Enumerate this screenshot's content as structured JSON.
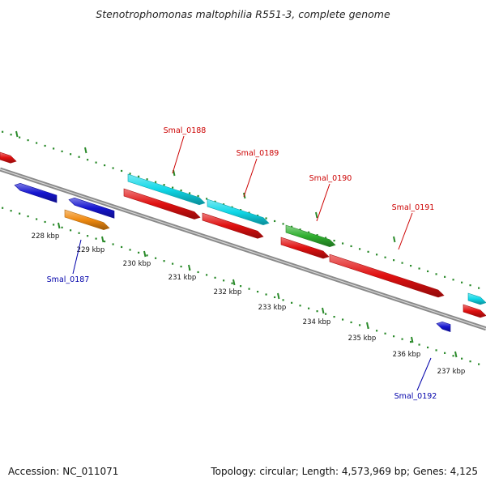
{
  "title": "Stenotrophomonas maltophilia R551-3, complete genome",
  "footer": {
    "accession": "Accession: NC_011071",
    "summary": "Topology: circular; Length: 4,573,969 bp; Genes: 4,125"
  },
  "colors": {
    "red": "#e01010",
    "blue": "#1515d0",
    "cyan": "#10d8e8",
    "green": "#30b030",
    "orange": "#f08a10",
    "backbone": "#8a8a8a",
    "tick": "#2a8a2a",
    "label_red": "#cc0000",
    "label_blue": "#0000aa"
  },
  "ticks": [
    {
      "label": "228 kbp"
    },
    {
      "label": "229 kbp"
    },
    {
      "label": "230 kbp"
    },
    {
      "label": "231 kbp"
    },
    {
      "label": "232 kbp"
    },
    {
      "label": "233 kbp"
    },
    {
      "label": "234 kbp"
    },
    {
      "label": "235 kbp"
    },
    {
      "label": "236 kbp"
    },
    {
      "label": "237 kbp"
    }
  ],
  "gene_labels": [
    {
      "text": "Smal_0187",
      "color": "blue"
    },
    {
      "text": "Smal_0188",
      "color": "red"
    },
    {
      "text": "Smal_0189",
      "color": "red"
    },
    {
      "text": "Smal_0190",
      "color": "red"
    },
    {
      "text": "Smal_0191",
      "color": "red"
    },
    {
      "text": "Smal_0192",
      "color": "blue"
    }
  ]
}
